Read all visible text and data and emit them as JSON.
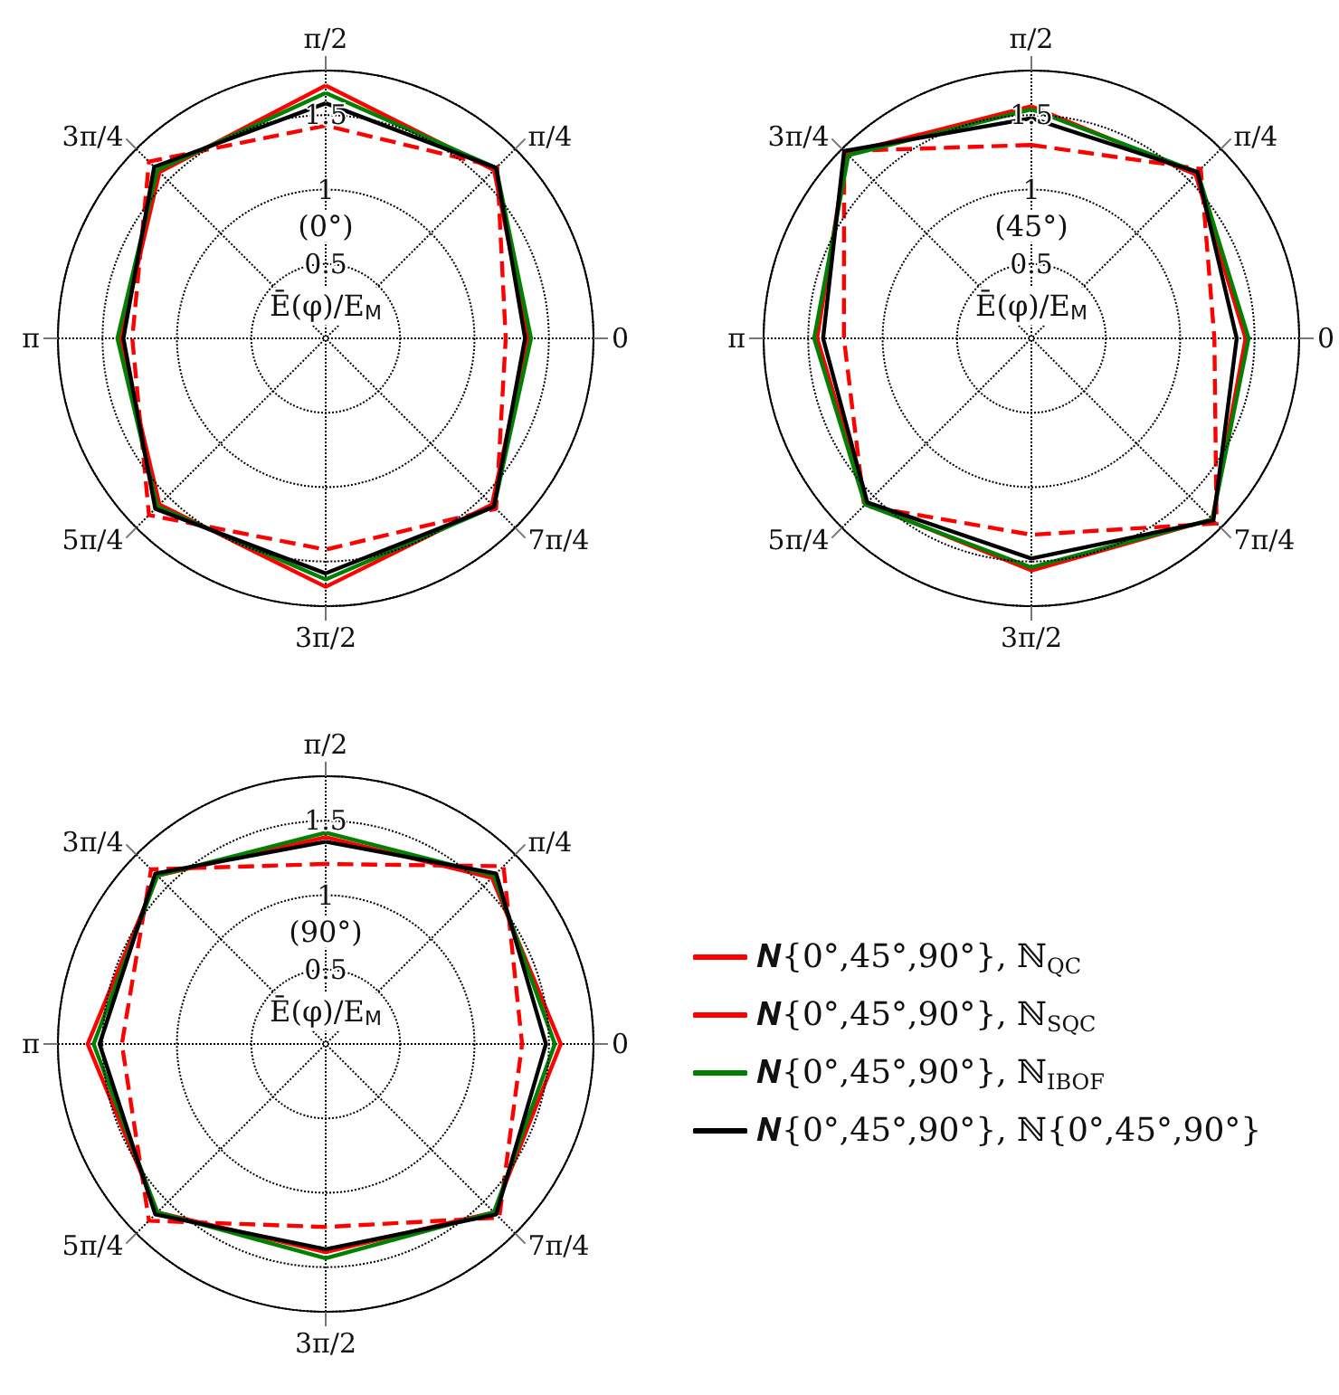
{
  "chart_data": [
    {
      "type": "radar",
      "title": "(0°)",
      "ylabel": "Ē(φ)/E$_{M}$",
      "categories": [
        "π/2",
        "π/4",
        "0",
        "7π/4",
        "3π/2",
        "5π/4",
        "π",
        "3π/4"
      ],
      "ylim": [
        0,
        1.8
      ],
      "yticks": [
        0.5,
        1,
        1.5
      ],
      "grid": true,
      "series": [
        {
          "color": "#ff0000",
          "line_style": "dashed",
          "values": [
            1.43,
            1.63,
            1.21,
            1.62,
            1.42,
            1.68,
            1.3,
            1.68
          ]
        },
        {
          "color": "#ff0000",
          "line_style": "solid",
          "values": [
            1.7,
            1.6,
            1.36,
            1.58,
            1.67,
            1.58,
            1.38,
            1.58
          ]
        },
        {
          "color": "#008000",
          "line_style": "solid",
          "values": [
            1.65,
            1.62,
            1.38,
            1.6,
            1.62,
            1.6,
            1.4,
            1.6
          ]
        },
        {
          "color": "#000000",
          "line_style": "solid",
          "values": [
            1.58,
            1.62,
            1.34,
            1.6,
            1.58,
            1.62,
            1.36,
            1.63
          ]
        }
      ]
    },
    {
      "type": "radar",
      "title": "(45°)",
      "ylabel": "Ē(φ)/E$_{M}$",
      "categories": [
        "π/2",
        "π/4",
        "0",
        "7π/4",
        "3π/2",
        "5π/4",
        "π",
        "3π/4"
      ],
      "ylim": [
        0,
        1.8
      ],
      "yticks": [
        0.5,
        1,
        1.5
      ],
      "grid": true,
      "series": [
        {
          "color": "#ff0000",
          "line_style": "dashed",
          "values": [
            1.3,
            1.61,
            1.23,
            1.76,
            1.32,
            1.59,
            1.26,
            1.78
          ]
        },
        {
          "color": "#ff0000",
          "line_style": "solid",
          "values": [
            1.56,
            1.56,
            1.44,
            1.72,
            1.56,
            1.57,
            1.44,
            1.76
          ]
        },
        {
          "color": "#008000",
          "line_style": "solid",
          "values": [
            1.54,
            1.58,
            1.46,
            1.72,
            1.54,
            1.58,
            1.46,
            1.74
          ]
        },
        {
          "color": "#000000",
          "line_style": "solid",
          "values": [
            1.48,
            1.58,
            1.38,
            1.73,
            1.48,
            1.56,
            1.4,
            1.78
          ]
        }
      ]
    },
    {
      "type": "radar",
      "title": "(90°)",
      "ylabel": "Ē(φ)/E$_{M}$",
      "categories": [
        "π/2",
        "π/4",
        "0",
        "7π/4",
        "3π/2",
        "5π/4",
        "π",
        "3π/4"
      ],
      "ylim": [
        0,
        1.8
      ],
      "yticks": [
        0.5,
        1,
        1.5
      ],
      "grid": true,
      "legend": "right",
      "series": [
        {
          "name": "𝑵{0°,45°,90°}, ℕ$_{QC}$",
          "color": "#ff0000",
          "line_style": "dashed",
          "values": [
            1.21,
            1.69,
            1.32,
            1.65,
            1.23,
            1.68,
            1.37,
            1.66
          ]
        },
        {
          "name": "𝑵{0°,45°,90°}, ℕ$_{SQC}$",
          "color": "#ff0000",
          "line_style": "solid",
          "values": [
            1.39,
            1.58,
            1.58,
            1.6,
            1.4,
            1.6,
            1.6,
            1.6
          ]
        },
        {
          "name": "𝑵{0°,45°,90°}, ℕ$_{IBOF}$",
          "color": "#008000",
          "line_style": "solid",
          "values": [
            1.42,
            1.6,
            1.54,
            1.6,
            1.44,
            1.6,
            1.56,
            1.6
          ]
        },
        {
          "name": "𝑵{0°,45°,90°}, ℕ{0°,45°,90°}",
          "color": "#000000",
          "line_style": "solid",
          "values": [
            1.36,
            1.62,
            1.48,
            1.62,
            1.38,
            1.62,
            1.52,
            1.62
          ]
        }
      ]
    }
  ]
}
